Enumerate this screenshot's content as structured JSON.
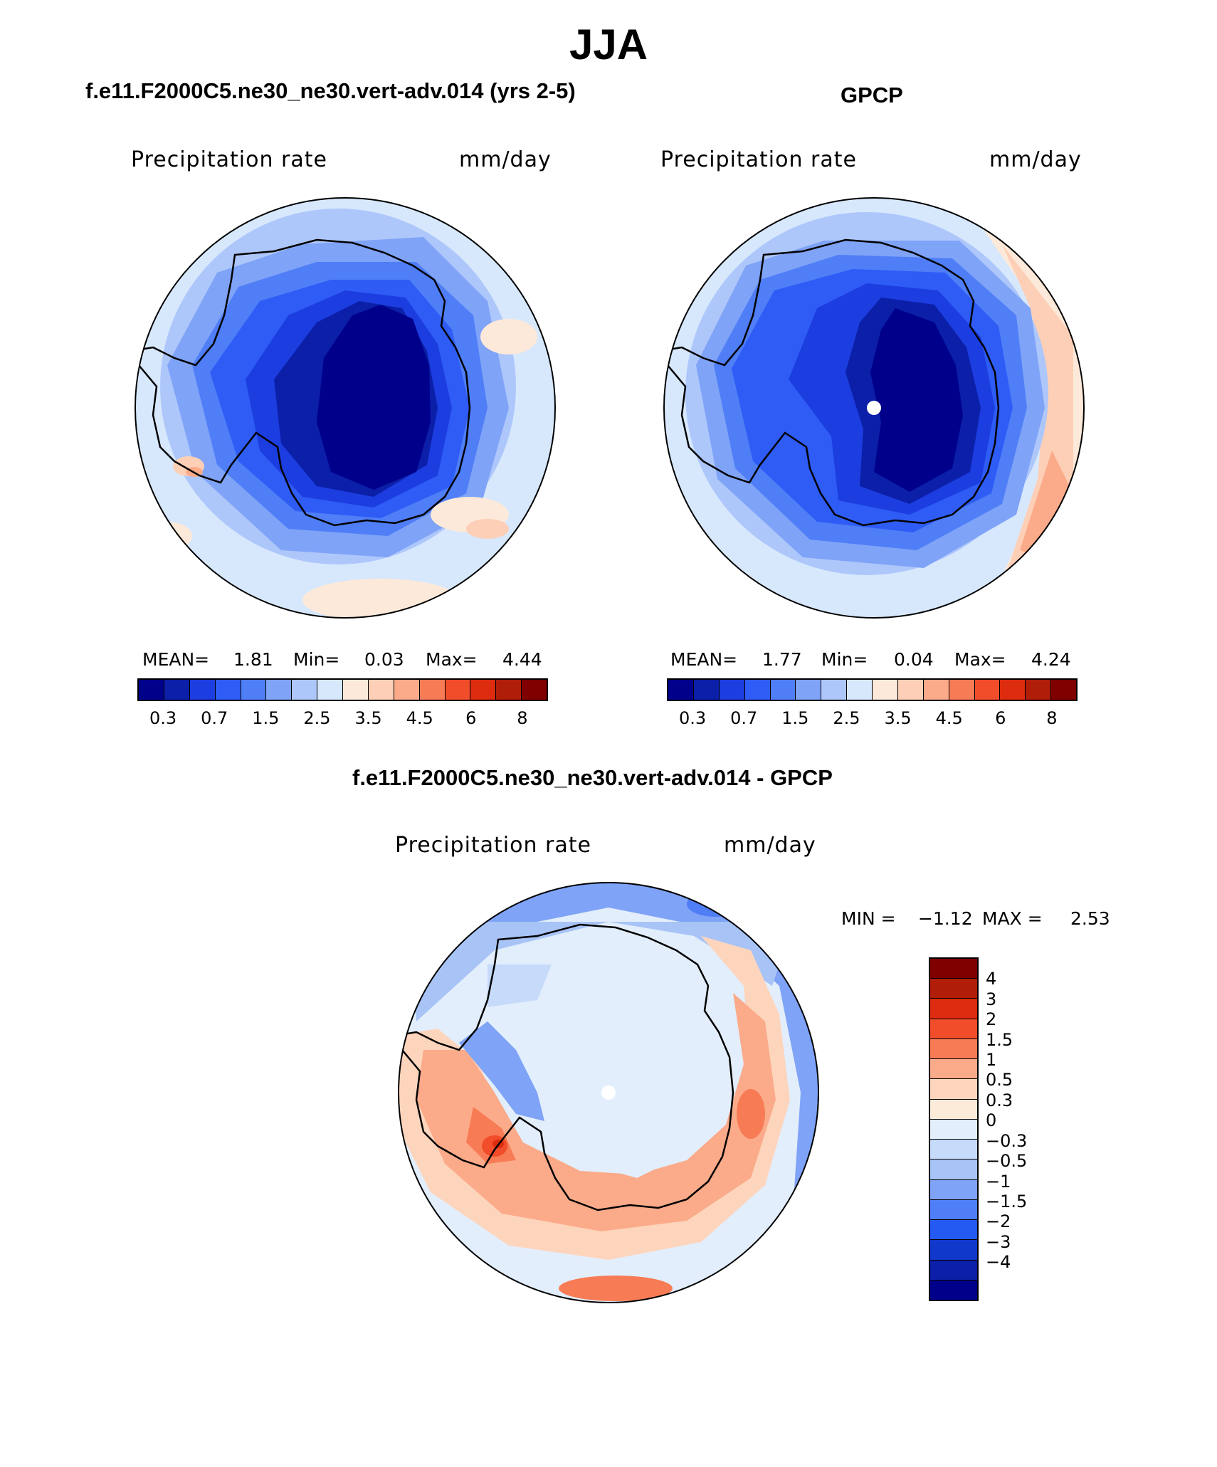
{
  "page_title": "JJA",
  "colors": {
    "abs_scale": [
      "#00008b",
      "#0b1fa8",
      "#1c3de0",
      "#2e5cf5",
      "#4f7ef7",
      "#7fa3f7",
      "#aec7fb",
      "#d7e8fd",
      "#fde9d9",
      "#fdcfb6",
      "#fbab8a",
      "#f77c55",
      "#f14d2a",
      "#dd2c0f",
      "#b01d09",
      "#800000"
    ],
    "diff_scale": [
      "#800000",
      "#b01d09",
      "#dd2c0f",
      "#f14d2a",
      "#f77c55",
      "#fbab8a",
      "#fdd5bd",
      "#fdebda",
      "#e2eefc",
      "#c6dafa",
      "#a8c4f6",
      "#7fa3f7",
      "#4f7ef7",
      "#2459f2",
      "#1038cb",
      "#0b1fa8",
      "#00008b"
    ],
    "coast": "#000000"
  },
  "icons": {
    "pole_marker": "white-dot"
  },
  "chart_data": [
    {
      "type": "heatmap",
      "projection": "south-polar-stereographic",
      "case_label": "f.e11.F2000C5.ne30_ne30.vert-adv.014 (yrs 2-5)",
      "variable": "Precipitation rate",
      "units": "mm/day",
      "stats": {
        "mean_label": "MEAN=",
        "mean": "1.81",
        "min_label": "Min=",
        "min": "0.03",
        "max_label": "Max=",
        "max": "4.44"
      },
      "contour_levels": [
        "0.3",
        "0.7",
        "1.5",
        "2.5",
        "3.5",
        "4.5",
        "6",
        "8"
      ]
    },
    {
      "type": "heatmap",
      "projection": "south-polar-stereographic",
      "case_label": "GPCP",
      "variable": "Precipitation rate",
      "units": "mm/day",
      "stats": {
        "mean_label": "MEAN=",
        "mean": "1.77",
        "min_label": "Min=",
        "min": "0.04",
        "max_label": "Max=",
        "max": "4.24"
      },
      "contour_levels": [
        "0.3",
        "0.7",
        "1.5",
        "2.5",
        "3.5",
        "4.5",
        "6",
        "8"
      ]
    },
    {
      "type": "heatmap",
      "projection": "south-polar-stereographic",
      "case_label": "f.e11.F2000C5.ne30_ne30.vert-adv.014 - GPCP",
      "variable": "Precipitation rate",
      "units": "mm/day",
      "stats": {
        "min_label": "MIN =",
        "min": "−1.12",
        "max_label": "MAX =",
        "max": "2.53"
      },
      "contour_levels": [
        "4",
        "3",
        "2",
        "1.5",
        "1",
        "0.5",
        "0.3",
        "0",
        "−0.3",
        "−0.5",
        "−1",
        "−1.5",
        "−2",
        "−3",
        "−4"
      ]
    }
  ]
}
